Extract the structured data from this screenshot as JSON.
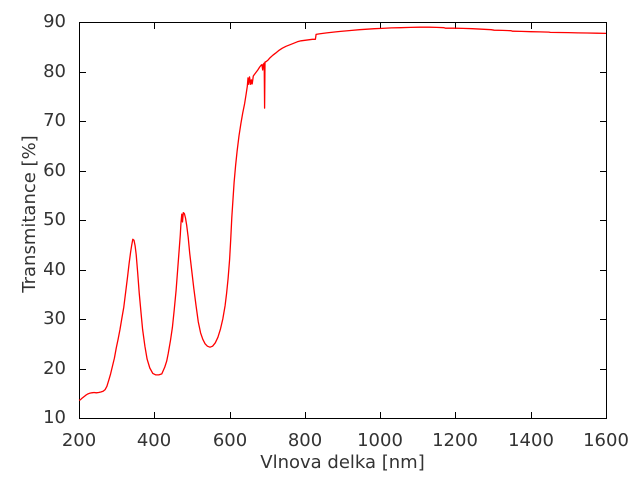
{
  "chart_data": {
    "type": "line",
    "title": "",
    "xlabel": "Vlnova delka [nm]",
    "ylabel": "Transmitance [%]",
    "xlim": [
      200,
      1600
    ],
    "ylim": [
      10,
      90
    ],
    "x_ticks": [
      200,
      400,
      600,
      800,
      1000,
      1200,
      1400,
      1600
    ],
    "y_ticks": [
      10,
      20,
      30,
      40,
      50,
      60,
      70,
      80,
      90
    ],
    "grid": false,
    "legend_position": "none",
    "line_color": "#ff0000",
    "frame_color": "#000000",
    "text_color": "#333333",
    "series": [
      {
        "name": "transmittance-spectrum",
        "points": [
          [
            200,
            13.6
          ],
          [
            204,
            13.7
          ],
          [
            208,
            14.0
          ],
          [
            213,
            14.3
          ],
          [
            218,
            14.6
          ],
          [
            223,
            14.85
          ],
          [
            228,
            15.0
          ],
          [
            234,
            15.1
          ],
          [
            240,
            15.15
          ],
          [
            246,
            15.1
          ],
          [
            252,
            15.15
          ],
          [
            258,
            15.25
          ],
          [
            264,
            15.4
          ],
          [
            269,
            15.7
          ],
          [
            274,
            16.4
          ],
          [
            279,
            17.6
          ],
          [
            284,
            18.9
          ],
          [
            289,
            20.5
          ],
          [
            294,
            22.1
          ],
          [
            299,
            24.2
          ],
          [
            304,
            25.9
          ],
          [
            309,
            27.9
          ],
          [
            314,
            30.2
          ],
          [
            319,
            32.4
          ],
          [
            324,
            35.5
          ],
          [
            329,
            38.6
          ],
          [
            333,
            41.2
          ],
          [
            337,
            43.5
          ],
          [
            340,
            44.9
          ],
          [
            343,
            46.1
          ],
          [
            346,
            45.9
          ],
          [
            349,
            44.8
          ],
          [
            352,
            43.0
          ],
          [
            356,
            39.3
          ],
          [
            360,
            35.3
          ],
          [
            365,
            31.1
          ],
          [
            369,
            27.9
          ],
          [
            375,
            24.5
          ],
          [
            381,
            21.9
          ],
          [
            388,
            20.1
          ],
          [
            396,
            19.0
          ],
          [
            404,
            18.7
          ],
          [
            412,
            18.7
          ],
          [
            420,
            18.9
          ],
          [
            428,
            20.3
          ],
          [
            433,
            21.5
          ],
          [
            437,
            23.0
          ],
          [
            443,
            25.7
          ],
          [
            448,
            28.3
          ],
          [
            453,
            31.8
          ],
          [
            458,
            35.8
          ],
          [
            462,
            39.8
          ],
          [
            466,
            43.8
          ],
          [
            469,
            47.0
          ],
          [
            471,
            49.5
          ],
          [
            473,
            51.2
          ],
          [
            475,
            49.6
          ],
          [
            477,
            51.5
          ],
          [
            480,
            51.3
          ],
          [
            483,
            50.4
          ],
          [
            486,
            48.9
          ],
          [
            490,
            46.5
          ],
          [
            494,
            43.3
          ],
          [
            499,
            40.0
          ],
          [
            505,
            36.2
          ],
          [
            511,
            32.6
          ],
          [
            517,
            29.4
          ],
          [
            523,
            27.2
          ],
          [
            529,
            25.9
          ],
          [
            535,
            25.0
          ],
          [
            541,
            24.5
          ],
          [
            548,
            24.3
          ],
          [
            555,
            24.5
          ],
          [
            562,
            25.2
          ],
          [
            569,
            26.3
          ],
          [
            576,
            28.0
          ],
          [
            582,
            30.0
          ],
          [
            588,
            32.7
          ],
          [
            592,
            35.2
          ],
          [
            596,
            38.2
          ],
          [
            600,
            42.0
          ],
          [
            603,
            46.0
          ],
          [
            606,
            50.5
          ],
          [
            609,
            54.2
          ],
          [
            612,
            57.6
          ],
          [
            616,
            61.0
          ],
          [
            620,
            63.9
          ],
          [
            625,
            67.0
          ],
          [
            630,
            69.5
          ],
          [
            635,
            71.6
          ],
          [
            640,
            73.5
          ],
          [
            644,
            75.4
          ],
          [
            647,
            77.0
          ],
          [
            649,
            78.7
          ],
          [
            651,
            77.4
          ],
          [
            653,
            78.9
          ],
          [
            656,
            77.4
          ],
          [
            658,
            78.3
          ],
          [
            660,
            77.5
          ],
          [
            663,
            79.1
          ],
          [
            666,
            79.4
          ],
          [
            670,
            79.8
          ],
          [
            675,
            80.3
          ],
          [
            680,
            80.9
          ],
          [
            684,
            81.3
          ],
          [
            686,
            81.4
          ],
          [
            688,
            80.3
          ],
          [
            690,
            81.5
          ],
          [
            692,
            81.7
          ],
          [
            693,
            72.6
          ],
          [
            694,
            81.9
          ],
          [
            697,
            82.0
          ],
          [
            702,
            82.3
          ],
          [
            708,
            82.8
          ],
          [
            715,
            83.3
          ],
          [
            722,
            83.7
          ],
          [
            730,
            84.2
          ],
          [
            740,
            84.7
          ],
          [
            750,
            85.1
          ],
          [
            760,
            85.4
          ],
          [
            770,
            85.7
          ],
          [
            780,
            86.0
          ],
          [
            790,
            86.2
          ],
          [
            800,
            86.3
          ],
          [
            810,
            86.4
          ],
          [
            820,
            86.5
          ],
          [
            828,
            86.5
          ],
          [
            830,
            87.5
          ],
          [
            838,
            87.6
          ],
          [
            848,
            87.7
          ],
          [
            858,
            87.8
          ],
          [
            870,
            87.9
          ],
          [
            882,
            88.0
          ],
          [
            895,
            88.1
          ],
          [
            910,
            88.2
          ],
          [
            925,
            88.3
          ],
          [
            945,
            88.45
          ],
          [
            965,
            88.55
          ],
          [
            985,
            88.65
          ],
          [
            1005,
            88.7
          ],
          [
            1030,
            88.8
          ],
          [
            1055,
            88.85
          ],
          [
            1080,
            88.9
          ],
          [
            1105,
            88.95
          ],
          [
            1130,
            88.95
          ],
          [
            1150,
            88.9
          ],
          [
            1170,
            88.85
          ],
          [
            1174,
            88.75
          ],
          [
            1195,
            88.75
          ],
          [
            1220,
            88.7
          ],
          [
            1245,
            88.65
          ],
          [
            1270,
            88.55
          ],
          [
            1295,
            88.45
          ],
          [
            1303,
            88.35
          ],
          [
            1325,
            88.3
          ],
          [
            1348,
            88.25
          ],
          [
            1352,
            88.15
          ],
          [
            1375,
            88.1
          ],
          [
            1400,
            88.05
          ],
          [
            1425,
            88.0
          ],
          [
            1448,
            87.95
          ],
          [
            1452,
            87.9
          ],
          [
            1475,
            87.88
          ],
          [
            1500,
            87.85
          ],
          [
            1525,
            87.8
          ],
          [
            1550,
            87.78
          ],
          [
            1575,
            87.73
          ],
          [
            1600,
            87.7
          ]
        ]
      }
    ]
  }
}
